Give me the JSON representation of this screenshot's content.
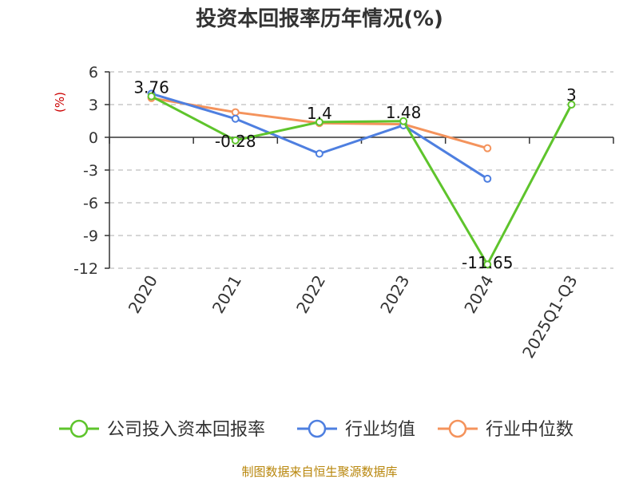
{
  "chart_data": {
    "type": "line",
    "title": "投资本回报率历年情况(%)",
    "unit_label": "(%)",
    "categories": [
      "2020",
      "2021",
      "2022",
      "2023",
      "2024",
      "2025Q1-Q3"
    ],
    "ylim": [
      -12,
      6
    ],
    "yticks": [
      6,
      3,
      0,
      -3,
      -6,
      -9,
      -12
    ],
    "grid": "horizontal-dashed",
    "legend_position": "bottom",
    "series": [
      {
        "name": "公司投入资本回报率",
        "color": "#5ec42c",
        "values": [
          3.76,
          -0.28,
          1.4,
          1.48,
          -11.65,
          3
        ],
        "labels": [
          "3.76",
          "-0.28",
          "1.4",
          "1.48",
          "-11.65",
          "3"
        ]
      },
      {
        "name": "行业均值",
        "color": "#4e7fe0",
        "values": [
          4.0,
          1.7,
          -1.5,
          1.1,
          -3.8,
          null
        ]
      },
      {
        "name": "行业中位数",
        "color": "#f4935c",
        "values": [
          3.6,
          2.3,
          1.3,
          1.2,
          -1.0,
          null
        ]
      }
    ]
  },
  "source_text": "制图数据来自恒生聚源数据库"
}
